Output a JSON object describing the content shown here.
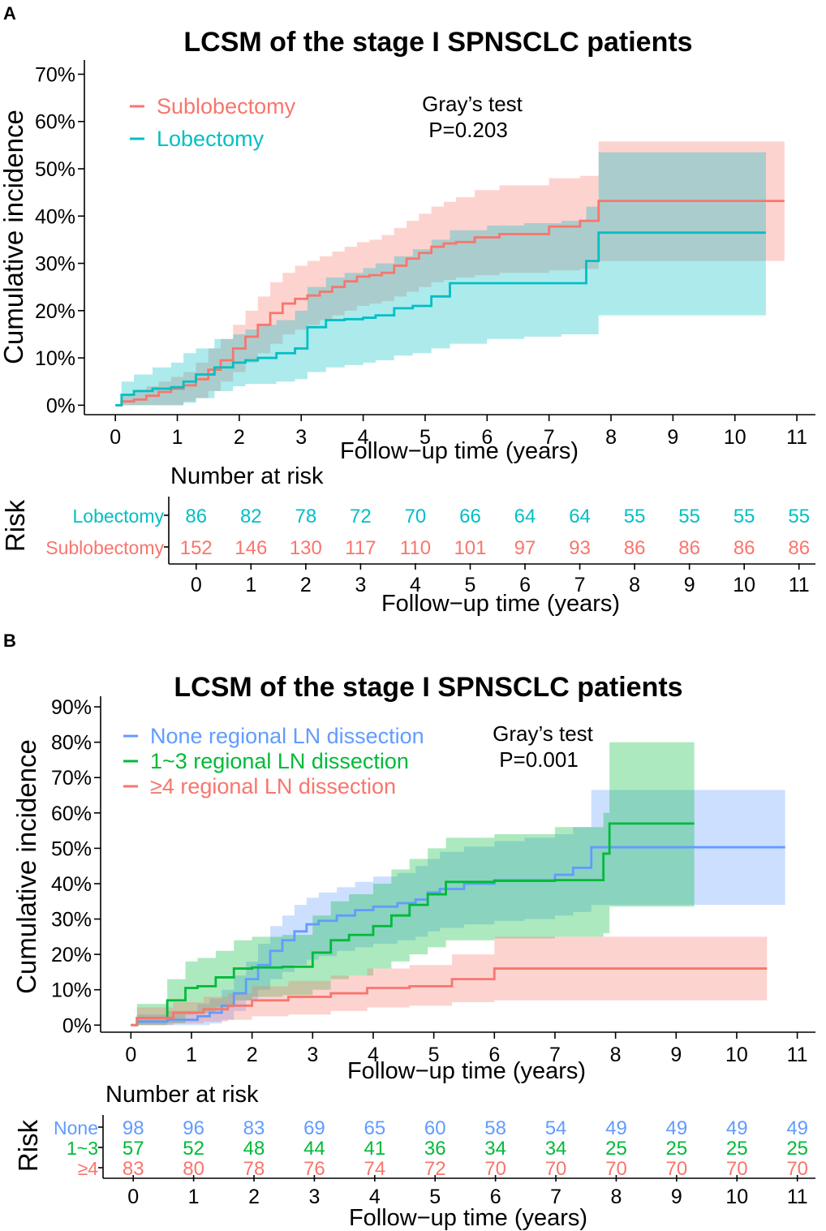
{
  "chart_data": [
    {
      "type": "line",
      "panel_label": "A",
      "title": "LCSM of the stage I SPNSCLC patients",
      "xlabel": "Follow−up time (years)",
      "ylabel": "Cumulative incidence",
      "xlim": [
        -0.5,
        11.3
      ],
      "ylim": [
        -2,
        73
      ],
      "x_ticks": [
        0,
        1,
        2,
        3,
        4,
        5,
        6,
        7,
        8,
        9,
        10,
        11
      ],
      "y_ticks": [
        0,
        10,
        20,
        30,
        40,
        50,
        60,
        70
      ],
      "y_tick_labels": [
        "0%",
        "10%",
        "20%",
        "30%",
        "40%",
        "50%",
        "60%",
        "70%"
      ],
      "test_label": "Gray’s test",
      "p_value": "P=0.203",
      "series": [
        {
          "name": "Sublobectomy",
          "color": "#F8766D",
          "x": [
            0,
            0.1,
            0.3,
            0.5,
            0.7,
            0.9,
            1.1,
            1.3,
            1.5,
            1.7,
            1.9,
            2.1,
            2.3,
            2.5,
            2.7,
            2.9,
            3.1,
            3.3,
            3.5,
            3.7,
            3.9,
            4.1,
            4.3,
            4.5,
            4.7,
            4.9,
            5.1,
            5.3,
            5.5,
            5.8,
            6.2,
            7.0,
            7.5,
            7.8,
            10.8
          ],
          "y": [
            0,
            0.8,
            1.2,
            2.0,
            2.8,
            3.5,
            4.2,
            5.5,
            7.5,
            9.5,
            12,
            14.5,
            17,
            19.5,
            21.5,
            22.5,
            23.2,
            24,
            25,
            26.2,
            27.2,
            27.5,
            28,
            29.5,
            31,
            32.2,
            33.5,
            34.2,
            34.5,
            35.5,
            36.2,
            37.8,
            39,
            43.2,
            43.2
          ],
          "lower": [
            0,
            0,
            0,
            0,
            0,
            0,
            0.8,
            1.5,
            3,
            5,
            7,
            9,
            11,
            13,
            15,
            16,
            17,
            18,
            19,
            20,
            21,
            21.5,
            22,
            23,
            24,
            25,
            26,
            26.5,
            27,
            27.5,
            28,
            28.5,
            28.8,
            30.5,
            30.5
          ],
          "upper": [
            0,
            2,
            3,
            4,
            5,
            6,
            7,
            9,
            12,
            14,
            17,
            20,
            23,
            26,
            28,
            29.5,
            30.5,
            31.5,
            32.5,
            33.5,
            34.5,
            35,
            36,
            37.5,
            39,
            40.5,
            42,
            43,
            44,
            45.5,
            46.5,
            48,
            48.5,
            55.8,
            55.8
          ]
        },
        {
          "name": "Lobectomy",
          "color": "#00BFC4",
          "x": [
            0,
            0.1,
            0.3,
            0.6,
            0.9,
            1.1,
            1.3,
            1.6,
            1.9,
            2.1,
            2.3,
            2.6,
            2.9,
            3.1,
            3.4,
            3.7,
            4.0,
            4.2,
            4.5,
            4.8,
            5.1,
            5.4,
            6.0,
            6.6,
            7.2,
            7.6,
            7.8,
            10.5
          ],
          "y": [
            0,
            2.2,
            3.0,
            3.5,
            3.8,
            5,
            6.5,
            8,
            9,
            9.5,
            10,
            11,
            12,
            16.5,
            18,
            18.2,
            18.5,
            19,
            20.5,
            21,
            23,
            25.8,
            25.8,
            25.8,
            25.8,
            30.5,
            36.5,
            36.5
          ],
          "lower": [
            0,
            0,
            0,
            0,
            0,
            0.5,
            1.5,
            3,
            4,
            4.5,
            4.5,
            5,
            5.5,
            7,
            8,
            8.5,
            9,
            9.5,
            10.5,
            11,
            12,
            13,
            14,
            14.5,
            15,
            15,
            19,
            19
          ],
          "upper": [
            0,
            5,
            6.5,
            8,
            9,
            11,
            12,
            14,
            15,
            16,
            17,
            18,
            20,
            25,
            27,
            28,
            29,
            30,
            31.5,
            33,
            35,
            37,
            38,
            38.5,
            39,
            42,
            53.5,
            53.5
          ]
        }
      ],
      "risk_table": {
        "title": "Number at risk",
        "ylabel": "Risk",
        "xlabel": "Follow−up time (years)",
        "times": [
          0,
          1,
          2,
          3,
          4,
          5,
          6,
          7,
          8,
          9,
          10,
          11
        ],
        "rows": [
          {
            "label": "Lobectomy",
            "color": "#00BFC4",
            "values": [
              86,
              82,
              78,
              72,
              70,
              66,
              64,
              64,
              55,
              55,
              55,
              55
            ]
          },
          {
            "label": "Sublobectomy",
            "color": "#F8766D",
            "values": [
              152,
              146,
              130,
              117,
              110,
              101,
              97,
              93,
              86,
              86,
              86,
              86
            ]
          }
        ]
      }
    },
    {
      "type": "line",
      "panel_label": "B",
      "title": "LCSM of the stage I SPNSCLC patients",
      "xlabel": "Follow−up time (years)",
      "ylabel": "Cumulative incidence",
      "xlim": [
        -0.5,
        11.3
      ],
      "ylim": [
        -2,
        93
      ],
      "x_ticks": [
        0,
        1,
        2,
        3,
        4,
        5,
        6,
        7,
        8,
        9,
        10,
        11
      ],
      "y_ticks": [
        0,
        10,
        20,
        30,
        40,
        50,
        60,
        70,
        80,
        90
      ],
      "y_tick_labels": [
        "0%",
        "10%",
        "20%",
        "30%",
        "40%",
        "50%",
        "60%",
        "70%",
        "80%",
        "90%"
      ],
      "test_label": "Gray’s test",
      "p_value": "P=0.001",
      "series": [
        {
          "name": "None regional LN dissection",
          "color": "#619CFF",
          "x": [
            0,
            0.1,
            0.6,
            1.1,
            1.3,
            1.5,
            1.7,
            1.9,
            2.1,
            2.3,
            2.5,
            2.7,
            2.9,
            3.1,
            3.4,
            3.7,
            4.0,
            4.4,
            4.7,
            4.9,
            5.1,
            5.5,
            6.0,
            6.5,
            7.0,
            7.3,
            7.6,
            10.8
          ],
          "y": [
            0,
            1,
            1.5,
            2.5,
            3.5,
            5.5,
            9,
            13,
            17,
            21,
            24,
            26.5,
            28.5,
            29.5,
            31,
            32.5,
            33.5,
            34.5,
            35.5,
            37.5,
            38.5,
            40,
            41,
            41,
            42.5,
            44.5,
            50.3,
            50.3
          ],
          "lower": [
            0,
            0,
            0,
            0,
            0.5,
            1.5,
            4,
            7,
            10,
            13,
            15,
            17,
            18.5,
            19.5,
            21,
            22,
            23,
            24,
            25,
            26.5,
            27.5,
            28.5,
            29.5,
            30,
            31,
            32,
            34,
            34
          ],
          "upper": [
            0,
            3,
            4,
            6,
            7.5,
            10,
            14,
            18,
            23,
            28,
            31,
            34,
            36,
            37.5,
            39,
            40.5,
            42,
            43,
            45,
            47,
            49,
            50.5,
            52,
            53,
            54,
            56,
            66.5,
            66.5
          ]
        },
        {
          "name": "1~3 regional LN dissection",
          "color": "#00BA38",
          "x": [
            0,
            0.1,
            0.6,
            0.9,
            1.1,
            1.4,
            1.7,
            2.0,
            2.5,
            3.0,
            3.3,
            3.6,
            4.0,
            4.3,
            4.6,
            4.9,
            5.2,
            6.0,
            7.0,
            7.8,
            7.9,
            9.3
          ],
          "y": [
            0,
            2,
            7,
            10.5,
            11,
            13.5,
            16,
            16.3,
            16.5,
            20.5,
            24,
            25.5,
            28,
            31,
            34,
            37,
            40.5,
            40.8,
            41,
            48.5,
            57,
            57
          ],
          "lower": [
            0,
            0,
            0.5,
            3,
            3.5,
            5,
            7,
            8,
            8.5,
            10,
            13,
            14,
            16,
            18,
            20,
            22,
            24,
            24.5,
            25,
            26,
            33.5,
            33.5
          ],
          "upper": [
            0,
            6,
            13,
            18,
            19,
            21,
            24,
            25,
            25.5,
            31,
            35,
            37,
            40,
            44,
            47,
            50,
            53,
            54,
            56,
            60,
            80,
            80
          ]
        },
        {
          "name": "≥4 regional LN dissection",
          "color": "#F8766D",
          "x": [
            0,
            0.1,
            0.7,
            1.2,
            1.6,
            2.0,
            2.6,
            3.3,
            3.9,
            4.6,
            5.3,
            6.0,
            7.0,
            10.5
          ],
          "y": [
            0,
            2,
            3.5,
            4.5,
            5.5,
            7,
            8,
            9,
            10.5,
            11,
            13,
            16,
            16,
            16
          ],
          "lower": [
            0,
            0,
            0.5,
            1,
            1.5,
            2.5,
            3,
            4,
            5,
            5.5,
            6.5,
            7,
            7,
            7
          ],
          "upper": [
            0,
            5,
            6.5,
            8,
            9,
            11,
            12.5,
            14,
            16,
            17,
            20,
            25,
            25,
            25
          ]
        }
      ],
      "risk_table": {
        "title": "Number at risk",
        "ylabel": "Risk",
        "xlabel": "Follow−up time (years)",
        "times": [
          0,
          1,
          2,
          3,
          4,
          5,
          6,
          7,
          8,
          9,
          10,
          11
        ],
        "rows": [
          {
            "label": "None",
            "color": "#619CFF",
            "values": [
              98,
              96,
              83,
              69,
              65,
              60,
              58,
              54,
              49,
              49,
              49,
              49
            ]
          },
          {
            "label": "1~3",
            "color": "#00BA38",
            "values": [
              57,
              52,
              48,
              44,
              41,
              36,
              34,
              34,
              25,
              25,
              25,
              25
            ]
          },
          {
            "label": "≥4",
            "color": "#F8766D",
            "values": [
              83,
              80,
              78,
              76,
              74,
              72,
              70,
              70,
              70,
              70,
              70,
              70
            ]
          }
        ]
      }
    }
  ]
}
